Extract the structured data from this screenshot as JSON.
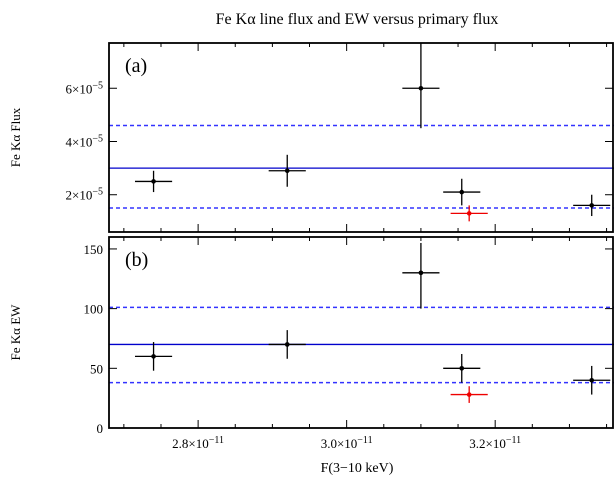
{
  "chart_data": {
    "title": "Fe Kα line flux and EW versus primary flux",
    "xlabel": "F(3−10 keV)",
    "xlim": [
      2.68e-11,
      3.36e-11
    ],
    "xticks": [
      {
        "value": 2.8e-11,
        "mantissa": "2.8×10",
        "exp": "−11"
      },
      {
        "value": 3e-11,
        "mantissa": "3.0×10",
        "exp": "−11"
      },
      {
        "value": 3.2e-11,
        "mantissa": "3.2×10",
        "exp": "−11"
      }
    ],
    "panels": [
      {
        "type": "scatter",
        "label": "(a)",
        "ylabel": "Fe Kα Flux",
        "ylim": [
          6e-06,
          7.7e-05
        ],
        "yticks": [
          {
            "value": 2e-05,
            "mantissa": "2×10",
            "exp": "−5"
          },
          {
            "value": 4e-05,
            "mantissa": "4×10",
            "exp": "−5"
          },
          {
            "value": 6e-05,
            "mantissa": "6×10",
            "exp": "−5"
          }
        ],
        "mean_line": 3e-05,
        "band_lines": [
          4.6e-05,
          1.5e-05
        ],
        "points": [
          {
            "x": 2.74e-11,
            "xerr": 2.5e-13,
            "y": 2.5e-05,
            "yerr_lo": 4e-06,
            "yerr_hi": 4e-06,
            "color": "#000000"
          },
          {
            "x": 2.92e-11,
            "xerr": 2.5e-13,
            "y": 2.9e-05,
            "yerr_lo": 6e-06,
            "yerr_hi": 6e-06,
            "color": "#000000"
          },
          {
            "x": 3.1e-11,
            "xerr": 2.5e-13,
            "y": 6e-05,
            "yerr_lo": 1.5e-05,
            "yerr_hi": 1.7e-05,
            "color": "#000000"
          },
          {
            "x": 3.155e-11,
            "xerr": 2.5e-13,
            "y": 2.1e-05,
            "yerr_lo": 5e-06,
            "yerr_hi": 5e-06,
            "color": "#000000"
          },
          {
            "x": 3.165e-11,
            "xerr": 2.5e-13,
            "y": 1.3e-05,
            "yerr_lo": 3e-06,
            "yerr_hi": 3e-06,
            "color": "#ee0000"
          },
          {
            "x": 3.33e-11,
            "xerr": 2.5e-13,
            "y": 1.6e-05,
            "yerr_lo": 4e-06,
            "yerr_hi": 4e-06,
            "color": "#000000"
          }
        ]
      },
      {
        "type": "scatter",
        "label": "(b)",
        "ylabel": "Fe Kα EW",
        "ylim": [
          0,
          160
        ],
        "yticks": [
          {
            "value": 0,
            "mantissa": "0",
            "exp": ""
          },
          {
            "value": 50,
            "mantissa": "50",
            "exp": ""
          },
          {
            "value": 100,
            "mantissa": "100",
            "exp": ""
          },
          {
            "value": 150,
            "mantissa": "150",
            "exp": ""
          }
        ],
        "mean_line": 70,
        "band_lines": [
          101,
          38
        ],
        "points": [
          {
            "x": 2.74e-11,
            "xerr": 2.5e-13,
            "y": 60,
            "yerr_lo": 12,
            "yerr_hi": 12,
            "color": "#000000"
          },
          {
            "x": 2.92e-11,
            "xerr": 2.5e-13,
            "y": 70,
            "yerr_lo": 12,
            "yerr_hi": 12,
            "color": "#000000"
          },
          {
            "x": 3.1e-11,
            "xerr": 2.5e-13,
            "y": 130,
            "yerr_lo": 30,
            "yerr_hi": 25,
            "color": "#000000"
          },
          {
            "x": 3.155e-11,
            "xerr": 2.5e-13,
            "y": 50,
            "yerr_lo": 12,
            "yerr_hi": 12,
            "color": "#000000"
          },
          {
            "x": 3.165e-11,
            "xerr": 2.5e-13,
            "y": 28,
            "yerr_lo": 7,
            "yerr_hi": 7,
            "color": "#ee0000"
          },
          {
            "x": 3.33e-11,
            "xerr": 2.5e-13,
            "y": 40,
            "yerr_lo": 12,
            "yerr_hi": 12,
            "color": "#000000"
          }
        ]
      }
    ],
    "colors": {
      "mean_line": "#0000cc",
      "band_lines": "#3333ff",
      "frame": "#000000"
    }
  }
}
